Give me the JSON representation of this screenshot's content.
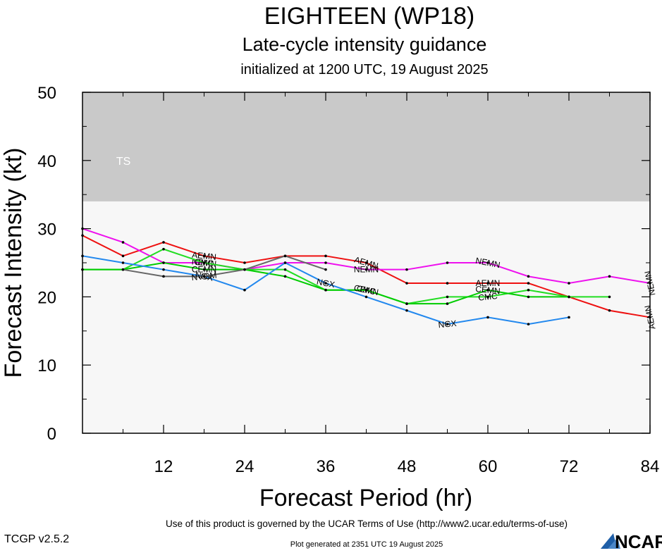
{
  "header": {
    "title": "EIGHTEEN (WP18)",
    "subtitle": "Late-cycle intensity guidance",
    "init_line": "initialized at 1200 UTC, 19 August 2025"
  },
  "footer": {
    "terms": "Use of this product is governed by the UCAR Terms of Use (http://www2.ucar.edu/terms-of-use)",
    "generated": "Plot generated at 2351 UTC   19 August 2025",
    "version": "TCGP v2.5.2",
    "logo_text": "NCAR"
  },
  "colors": {
    "band": "#c9c9c9",
    "plot_bg": "#f7f7f7",
    "AEMN": "#ee1111",
    "NEMN": "#ee11ee",
    "CMC": "#22dd22",
    "CEMN": "#00cc00",
    "NGX": "#2288ee",
    "NVGM": "#666666"
  },
  "chart_data": {
    "type": "line",
    "xlabel": "Forecast Period (hr)",
    "ylabel": "Forecast Intensity (kt)",
    "xlim": [
      0,
      84
    ],
    "ylim": [
      0,
      50
    ],
    "xticks": [
      12,
      24,
      36,
      48,
      60,
      72,
      84
    ],
    "yticks": [
      0,
      10,
      20,
      30,
      40,
      50
    ],
    "bands": [
      {
        "label": "TS",
        "from": 34,
        "to": 50
      }
    ],
    "series": [
      {
        "name": "AEMN",
        "label_hours": [
          18,
          42,
          60,
          84
        ],
        "x": [
          0,
          6,
          12,
          18,
          24,
          30,
          36,
          42,
          48,
          54,
          60,
          66,
          72,
          78,
          84
        ],
        "y": [
          29,
          26,
          28,
          26,
          25,
          26,
          26,
          25,
          22,
          22,
          22,
          22,
          20,
          18,
          17
        ]
      },
      {
        "name": "NEMN",
        "label_hours": [
          18,
          42,
          60,
          84
        ],
        "x": [
          0,
          6,
          12,
          18,
          24,
          30,
          36,
          42,
          48,
          54,
          60,
          66,
          72,
          78,
          84
        ],
        "y": [
          30,
          28,
          25,
          25,
          24,
          25,
          25,
          24,
          24,
          25,
          25,
          23,
          22,
          23,
          22
        ]
      },
      {
        "name": "CMC",
        "label_hours": [
          18,
          42,
          60
        ],
        "x": [
          0,
          6,
          12,
          18,
          24,
          30,
          36,
          42,
          48,
          54,
          60,
          66,
          72,
          78
        ],
        "y": [
          24,
          24,
          27,
          25,
          24,
          24,
          21,
          21,
          19,
          20,
          20,
          21,
          20,
          20
        ]
      },
      {
        "name": "CEMN",
        "label_hours": [
          18,
          42,
          60
        ],
        "x": [
          0,
          6,
          12,
          18,
          24,
          30,
          36,
          42,
          48,
          54,
          60,
          66,
          72
        ],
        "y": [
          24,
          24,
          25,
          24,
          24,
          23,
          21,
          21,
          19,
          19,
          21,
          20,
          20
        ]
      },
      {
        "name": "NGX",
        "label_hours": [
          18,
          36,
          54
        ],
        "x": [
          0,
          6,
          12,
          18,
          24,
          30,
          36,
          42,
          48,
          54,
          60,
          66,
          72
        ],
        "y": [
          26,
          25,
          24,
          23,
          21,
          25,
          22,
          20,
          18,
          16,
          17,
          16,
          17
        ]
      },
      {
        "name": "NVGM",
        "label_hours": [
          18
        ],
        "x": [
          6,
          12,
          18,
          24,
          30,
          36
        ],
        "y": [
          24,
          23,
          23,
          24,
          26,
          24
        ]
      }
    ]
  }
}
